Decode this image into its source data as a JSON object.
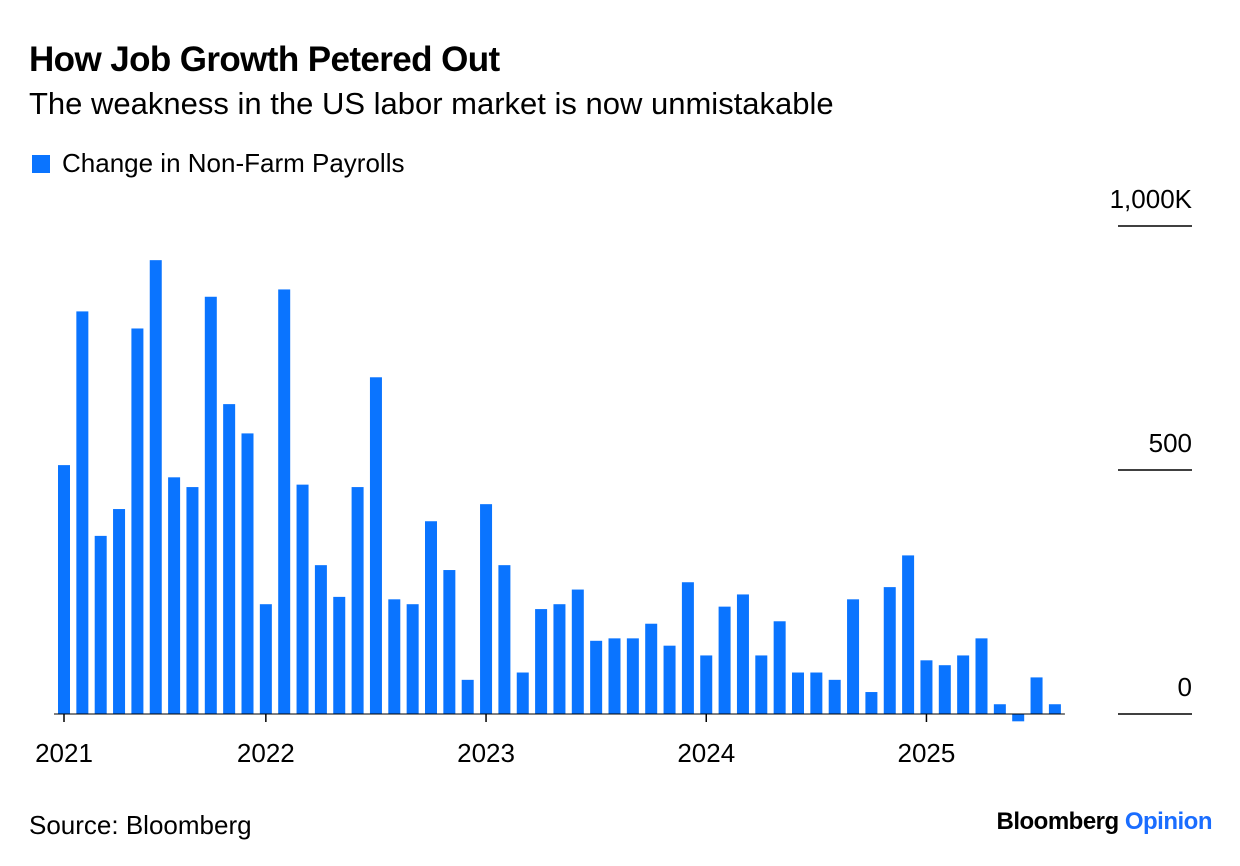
{
  "title": "How Job Growth Petered Out",
  "subtitle": "The weakness in the US labor market is now unmistakable",
  "legend": {
    "label": "Change in Non-Farm Payrolls",
    "color": "#0a74ff"
  },
  "source": "Source: Bloomberg",
  "brand": {
    "main": "Bloomberg",
    "sub": "Opinion"
  },
  "chart_data": {
    "type": "bar",
    "series": [
      {
        "name": "Change in Non-Farm Payrolls",
        "color": "#0a74ff",
        "values": [
          510,
          825,
          365,
          420,
          790,
          930,
          485,
          465,
          855,
          635,
          575,
          225,
          870,
          470,
          305,
          240,
          465,
          690,
          235,
          225,
          395,
          295,
          70,
          430,
          305,
          85,
          215,
          225,
          255,
          150,
          155,
          155,
          185,
          140,
          270,
          120,
          220,
          245,
          120,
          190,
          85,
          85,
          70,
          235,
          45,
          260,
          325,
          110,
          100,
          120,
          155,
          20,
          -15,
          75,
          20
        ]
      }
    ],
    "x_start": "2021-01",
    "x_ticks": [
      {
        "label": "2021",
        "index": 0
      },
      {
        "label": "2022",
        "index": 11
      },
      {
        "label": "2023",
        "index": 23
      },
      {
        "label": "2024",
        "index": 35
      },
      {
        "label": "2025",
        "index": 47
      }
    ],
    "y_ticks": [
      {
        "value": 1000,
        "label": "1,000K"
      },
      {
        "value": 500,
        "label": "500"
      },
      {
        "value": 0,
        "label": "0"
      }
    ],
    "ylim": [
      0,
      1000
    ],
    "grid": false,
    "legend_position": "top-left"
  }
}
